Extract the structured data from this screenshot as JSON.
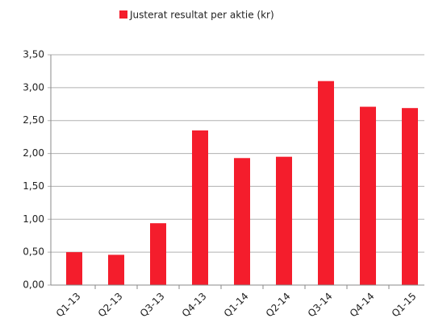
{
  "chart_data": {
    "type": "bar",
    "categories": [
      "Q1-13",
      "Q2-13",
      "Q3-13",
      "Q4-13",
      "Q1-14",
      "Q2-14",
      "Q3-14",
      "Q4-14",
      "Q1-15"
    ],
    "series": [
      {
        "name": "Justerat resultat per aktie (kr)",
        "color": "#f41d2c",
        "values": [
          0.5,
          0.46,
          0.94,
          2.35,
          1.93,
          1.95,
          3.1,
          2.71,
          2.69
        ]
      }
    ],
    "ylim": [
      0,
      3.5
    ],
    "yticks": [
      {
        "value": 0,
        "label": "0,00"
      },
      {
        "value": 0.5,
        "label": "0,50"
      },
      {
        "value": 1,
        "label": "1,00"
      },
      {
        "value": 1.5,
        "label": "1,50"
      },
      {
        "value": 2,
        "label": "2,00"
      },
      {
        "value": 2.5,
        "label": "2,50"
      },
      {
        "value": 3,
        "label": "3,00"
      },
      {
        "value": 3.5,
        "label": "3,50"
      }
    ],
    "grid": true,
    "legend": "top"
  }
}
